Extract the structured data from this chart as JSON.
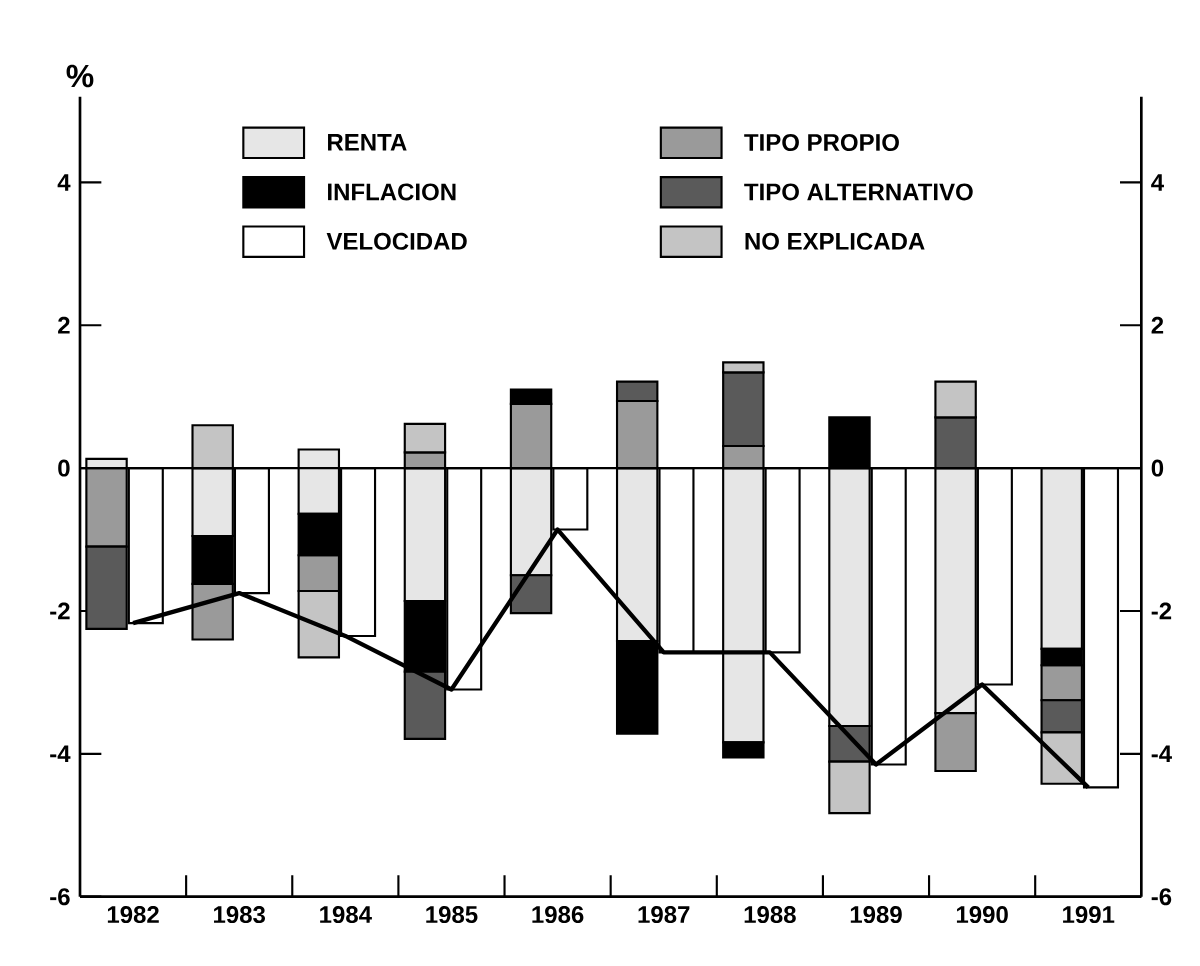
{
  "chart_data": {
    "type": "bar",
    "ylabel": "%",
    "categories": [
      "1982",
      "1983",
      "1984",
      "1985",
      "1986",
      "1987",
      "1988",
      "1989",
      "1990",
      "1991"
    ],
    "series": [
      {
        "name": "RENTA",
        "color": "#e6e6e6",
        "base": [
          0,
          0,
          0.26,
          0,
          0,
          0,
          0,
          0,
          0,
          0
        ],
        "values": [
          0.13,
          -0.95,
          -0.9,
          -1.86,
          -1.5,
          -2.42,
          -3.84,
          -3.61,
          -3.43,
          -2.53
        ]
      },
      {
        "name": "TIPO PROPIO",
        "color": "#9a9a9a",
        "base": [
          0,
          -1.62,
          -1.22,
          0,
          0,
          0,
          0,
          null,
          -3.43,
          -2.76
        ],
        "values": [
          -1.1,
          -0.78,
          -0.5,
          0.22,
          0.9,
          0.94,
          0.31,
          null,
          -0.81,
          -0.49
        ]
      },
      {
        "name": "INFLACION",
        "color": "#000000",
        "base": [
          null,
          -0.95,
          -0.64,
          -1.86,
          0.9,
          -2.42,
          -3.84,
          0,
          null,
          -2.53
        ],
        "values": [
          null,
          -0.67,
          -0.58,
          -0.99,
          0.2,
          -1.3,
          -0.21,
          0.71,
          null,
          -0.23
        ]
      },
      {
        "name": "TIPO ALTERNATIVO",
        "color": "#5a5a5a",
        "base": [
          -1.1,
          null,
          null,
          -2.85,
          -1.5,
          0.94,
          0.31,
          -3.61,
          0,
          -3.25
        ],
        "values": [
          -1.15,
          null,
          null,
          -0.94,
          -0.53,
          0.27,
          1.03,
          -0.5,
          0.71,
          -0.45
        ]
      },
      {
        "name": "VELOCIDAD",
        "color": "#ffffff",
        "values": [
          -2.17,
          -1.75,
          -2.35,
          -3.1,
          -0.86,
          -2.58,
          -2.58,
          -4.15,
          -3.03,
          -4.47
        ]
      },
      {
        "name": "NO EXPLICADA",
        "color": "#c4c4c4",
        "base": [
          null,
          0,
          -1.72,
          0.22,
          null,
          null,
          1.34,
          -4.11,
          0.71,
          -3.7
        ],
        "values": [
          null,
          0.6,
          -0.93,
          0.4,
          null,
          null,
          0.14,
          -0.72,
          0.5,
          -0.72
        ]
      },
      {
        "type": "line",
        "color": "#000000",
        "values": [
          -2.17,
          -1.75,
          -2.35,
          -3.1,
          -0.86,
          -2.58,
          -2.58,
          -4.15,
          -3.03,
          -4.47
        ]
      }
    ],
    "ylim": [
      -6,
      5.2
    ],
    "yticks": [
      -6,
      -4,
      -2,
      0,
      2,
      4
    ],
    "y2lim": [
      -6,
      5.2
    ],
    "y2ticks": [
      -6,
      -4,
      -2,
      0,
      2,
      4
    ],
    "ref_lines": [
      {
        "axis": "y",
        "value": 0,
        "color": "#000000"
      }
    ],
    "legend": "top"
  }
}
